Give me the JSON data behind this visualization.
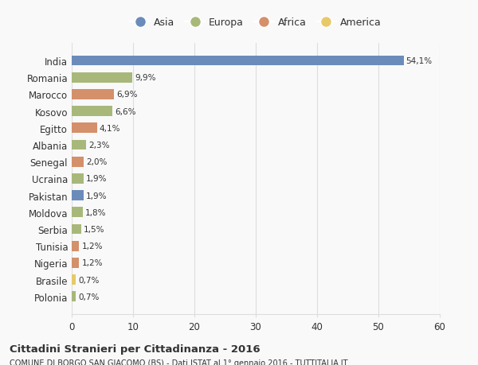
{
  "countries": [
    "India",
    "Romania",
    "Marocco",
    "Kosovo",
    "Egitto",
    "Albania",
    "Senegal",
    "Ucraina",
    "Pakistan",
    "Moldova",
    "Serbia",
    "Tunisia",
    "Nigeria",
    "Brasile",
    "Polonia"
  ],
  "values": [
    54.1,
    9.9,
    6.9,
    6.6,
    4.1,
    2.3,
    2.0,
    1.9,
    1.9,
    1.8,
    1.5,
    1.2,
    1.2,
    0.7,
    0.7
  ],
  "labels": [
    "54,1%",
    "9,9%",
    "6,9%",
    "6,6%",
    "4,1%",
    "2,3%",
    "2,0%",
    "1,9%",
    "1,9%",
    "1,8%",
    "1,5%",
    "1,2%",
    "1,2%",
    "0,7%",
    "0,7%"
  ],
  "continents": [
    "Asia",
    "Europa",
    "Africa",
    "Europa",
    "Africa",
    "Europa",
    "Africa",
    "Europa",
    "Asia",
    "Europa",
    "Europa",
    "Africa",
    "Africa",
    "America",
    "Europa"
  ],
  "continent_colors": {
    "Asia": "#6b8cba",
    "Europa": "#a8b87a",
    "Africa": "#d4906a",
    "America": "#e8c96a"
  },
  "legend_items": [
    "Asia",
    "Europa",
    "Africa",
    "America"
  ],
  "legend_colors": [
    "#6b8cba",
    "#a8b87a",
    "#d4906a",
    "#e8c96a"
  ],
  "xlim": [
    0,
    60
  ],
  "xticks": [
    0,
    10,
    20,
    30,
    40,
    50,
    60
  ],
  "title": "Cittadini Stranieri per Cittadinanza - 2016",
  "subtitle": "COMUNE DI BORGO SAN GIACOMO (BS) - Dati ISTAT al 1° gennaio 2016 - TUTTITALIA.IT",
  "background_color": "#f9f9f9",
  "bar_height": 0.6,
  "grid_color": "#dddddd",
  "text_color": "#333333"
}
